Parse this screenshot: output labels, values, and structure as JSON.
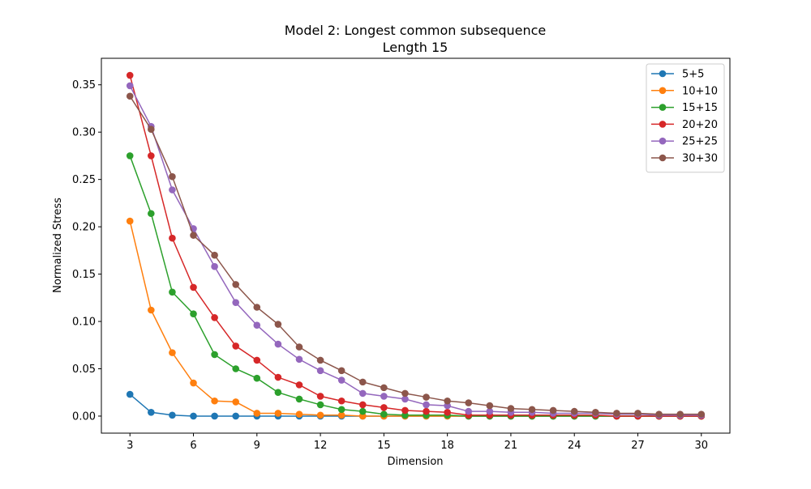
{
  "chart_data": {
    "type": "line",
    "title": "Model 2: Longest common subsequence",
    "subtitle": "Length 15",
    "xlabel": "Dimension",
    "ylabel": "Normalized Stress",
    "xlim": [
      1.65,
      31.35
    ],
    "ylim": [
      -0.018,
      0.378
    ],
    "xticks": [
      3,
      6,
      9,
      12,
      15,
      18,
      21,
      24,
      27,
      30
    ],
    "yticks": [
      0.0,
      0.05,
      0.1,
      0.15,
      0.2,
      0.25,
      0.3,
      0.35
    ],
    "ytick_labels": [
      "0.00",
      "0.05",
      "0.10",
      "0.15",
      "0.20",
      "0.25",
      "0.30",
      "0.35"
    ],
    "grid": false,
    "legend_position": "top-right",
    "x": [
      3,
      4,
      5,
      6,
      7,
      8,
      9,
      10,
      11,
      12,
      13,
      14,
      15,
      16,
      17,
      18,
      19,
      20,
      21,
      22,
      23,
      24,
      25,
      26,
      27,
      28,
      29,
      30
    ],
    "series": [
      {
        "name": "5+5",
        "color": "#1f77b4",
        "values": [
          0.023,
          0.004,
          0.001,
          0.0,
          0.0,
          0.0,
          0.0,
          0.0,
          0.0,
          0.0,
          0.0,
          0.0,
          0.0,
          0.0,
          0.0,
          0.0,
          0.0,
          0.0,
          0.0,
          0.0,
          0.0,
          0.0,
          0.0,
          0.0,
          0.0,
          0.0,
          0.0,
          0.0
        ]
      },
      {
        "name": "10+10",
        "color": "#ff7f0e",
        "values": [
          0.206,
          0.112,
          0.067,
          0.035,
          0.016,
          0.015,
          0.003,
          0.003,
          0.002,
          0.001,
          0.001,
          0.0,
          0.0,
          0.0,
          0.0,
          0.0,
          0.0,
          0.0,
          0.0,
          0.0,
          0.0,
          0.0,
          0.0,
          0.0,
          0.0,
          0.0,
          0.0,
          0.0
        ]
      },
      {
        "name": "15+15",
        "color": "#2ca02c",
        "values": [
          0.275,
          0.214,
          0.131,
          0.108,
          0.065,
          0.05,
          0.04,
          0.025,
          0.018,
          0.012,
          0.007,
          0.005,
          0.002,
          0.001,
          0.001,
          0.001,
          0.0,
          0.0,
          0.0,
          0.0,
          0.0,
          0.0,
          0.0,
          0.0,
          0.0,
          0.0,
          0.0,
          0.0
        ]
      },
      {
        "name": "20+20",
        "color": "#d62728",
        "values": [
          0.36,
          0.275,
          0.188,
          0.136,
          0.104,
          0.074,
          0.059,
          0.041,
          0.033,
          0.021,
          0.016,
          0.012,
          0.009,
          0.006,
          0.005,
          0.004,
          0.001,
          0.001,
          0.001,
          0.001,
          0.001,
          0.001,
          0.001,
          0.0,
          0.0,
          0.0,
          0.0,
          0.0
        ]
      },
      {
        "name": "25+25",
        "color": "#9467bd",
        "values": [
          0.349,
          0.306,
          0.239,
          0.198,
          0.158,
          0.12,
          0.096,
          0.076,
          0.06,
          0.048,
          0.038,
          0.024,
          0.021,
          0.018,
          0.012,
          0.011,
          0.005,
          0.005,
          0.004,
          0.004,
          0.003,
          0.003,
          0.003,
          0.002,
          0.002,
          0.001,
          0.001,
          0.001
        ]
      },
      {
        "name": "30+30",
        "color": "#8c564b",
        "values": [
          0.338,
          0.303,
          0.253,
          0.191,
          0.17,
          0.139,
          0.115,
          0.097,
          0.073,
          0.059,
          0.048,
          0.036,
          0.03,
          0.024,
          0.02,
          0.016,
          0.014,
          0.011,
          0.008,
          0.007,
          0.006,
          0.005,
          0.004,
          0.003,
          0.003,
          0.002,
          0.002,
          0.002
        ]
      }
    ]
  }
}
